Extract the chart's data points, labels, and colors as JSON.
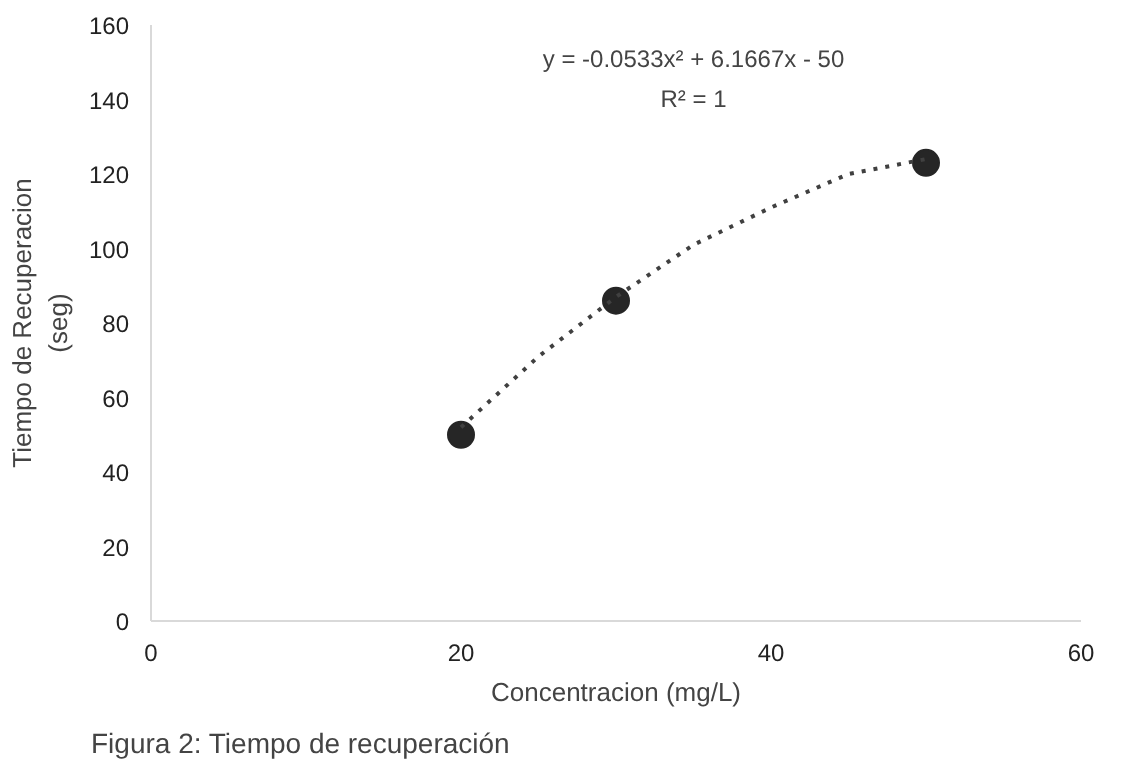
{
  "chart_data": {
    "type": "scatter",
    "xlabel": "Concentracion (mg/L)",
    "ylabel": "Tiempo de Recuperacion\n(seg)",
    "annotations": [
      "y = -0.0533x² + 6.1667x - 50",
      "R² = 1",
      "Figura 2: Tiempo de recuperación"
    ],
    "x": [
      20,
      30,
      50
    ],
    "series": [
      {
        "color": "#262626",
        "values": [
          50,
          86,
          123
        ],
        "marker": "circle"
      },
      {
        "type": "line",
        "color": "#404040",
        "x": [
          20,
          25,
          30,
          35,
          40,
          45,
          50
        ],
        "values": [
          52,
          71,
          87,
          101,
          111,
          120,
          124
        ],
        "line_style": "dotted",
        "marker": "none"
      }
    ],
    "xlim": [
      0,
      60
    ],
    "xticks": [
      0,
      20,
      40,
      60
    ],
    "ylim": [
      0,
      160
    ],
    "yticks": [
      0,
      20,
      40,
      60,
      80,
      100,
      120,
      140,
      160
    ],
    "grid": false
  }
}
